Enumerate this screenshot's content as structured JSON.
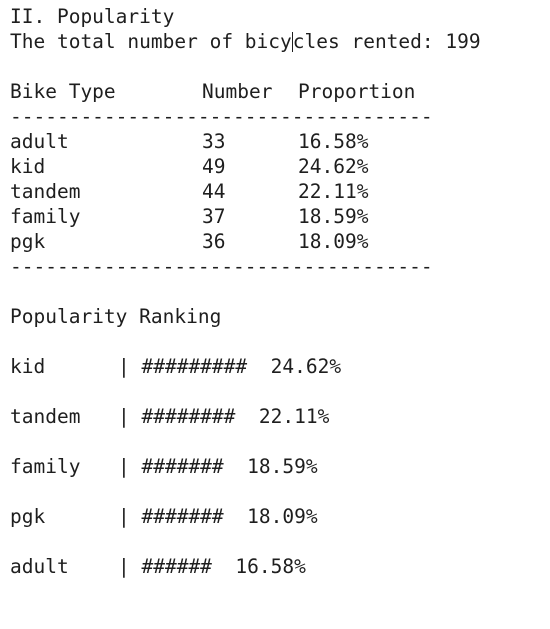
{
  "section_title": "II. Popularity",
  "total_label_before_caret": "The total number of bicy",
  "total_label_after_caret": "cles rented: 199",
  "table": {
    "headers": [
      "Bike Type",
      "Number",
      "Proportion"
    ],
    "rule": "------------------------------------",
    "rows": [
      {
        "type": "adult",
        "number": "33",
        "proportion": "16.58%"
      },
      {
        "type": "kid",
        "number": "49",
        "proportion": "24.62%"
      },
      {
        "type": "tandem",
        "number": "44",
        "proportion": "22.11%"
      },
      {
        "type": "family",
        "number": "37",
        "proportion": "18.59%"
      },
      {
        "type": "pgk",
        "number": "36",
        "proportion": "18.09%"
      }
    ]
  },
  "ranking": {
    "title": "Popularity Ranking",
    "items": [
      {
        "name": "kid",
        "bar": "| #########  24.62%"
      },
      {
        "name": "tandem",
        "bar": "| ########  22.11%"
      },
      {
        "name": "family",
        "bar": "| #######  18.59%"
      },
      {
        "name": "pgk",
        "bar": "| #######  18.09%"
      },
      {
        "name": "adult",
        "bar": "| ######  16.58%"
      }
    ]
  }
}
